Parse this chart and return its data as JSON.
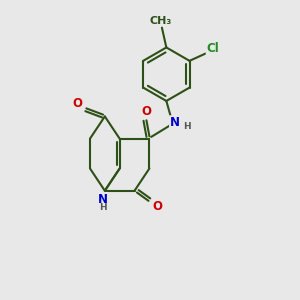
{
  "bg": "#e8e8e8",
  "bc": "#2d5016",
  "bw": 1.5,
  "colors": {
    "O": "#cc0000",
    "N": "#0000cc",
    "Cl": "#228B22",
    "H": "#555555",
    "C": "#2d5016"
  },
  "fs": 8.5
}
